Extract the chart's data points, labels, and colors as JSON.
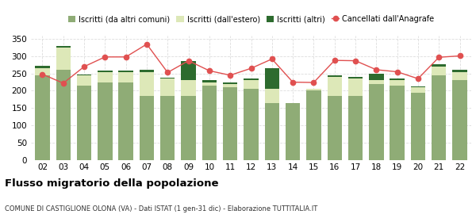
{
  "years": [
    "02",
    "03",
    "04",
    "05",
    "06",
    "07",
    "08",
    "09",
    "10",
    "11",
    "12",
    "13",
    "14",
    "15",
    "16",
    "17",
    "18",
    "19",
    "20",
    "21",
    "22"
  ],
  "iscritti_comuni": [
    245,
    260,
    215,
    225,
    225,
    185,
    185,
    185,
    215,
    210,
    205,
    165,
    165,
    200,
    185,
    185,
    220,
    215,
    195,
    245,
    230
  ],
  "iscritti_estero": [
    20,
    65,
    30,
    30,
    30,
    70,
    50,
    45,
    10,
    10,
    25,
    40,
    0,
    5,
    55,
    50,
    10,
    15,
    15,
    25,
    25
  ],
  "iscritti_altri": [
    8,
    5,
    3,
    3,
    3,
    5,
    3,
    55,
    5,
    3,
    5,
    60,
    0,
    0,
    5,
    5,
    20,
    5,
    3,
    8,
    5
  ],
  "cancellati": [
    248,
    222,
    270,
    298,
    298,
    335,
    253,
    287,
    258,
    245,
    265,
    292,
    225,
    224,
    288,
    287,
    261,
    255,
    235,
    297,
    301
  ],
  "color_comuni": "#8fac76",
  "color_estero": "#dde8b8",
  "color_altri": "#2d6b2e",
  "color_cancellati": "#e05050",
  "color_grid": "#dddddd",
  "ylim": [
    0,
    360
  ],
  "yticks": [
    0,
    50,
    100,
    150,
    200,
    250,
    300,
    350
  ],
  "title": "Flusso migratorio della popolazione",
  "subtitle": "COMUNE DI CASTIGLIONE OLONA (VA) - Dati ISTAT (1 gen-31 dic) - Elaborazione TUTTITALIA.IT",
  "legend_labels": [
    "Iscritti (da altri comuni)",
    "Iscritti (dall'estero)",
    "Iscritti (altri)",
    "Cancellati dall'Anagrafe"
  ],
  "bg_color": "#ffffff"
}
